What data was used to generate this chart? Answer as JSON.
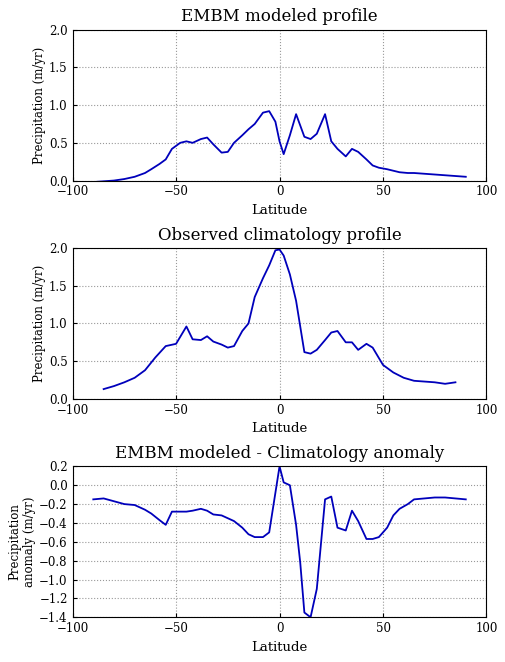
{
  "title1": "EMBM modeled profile",
  "title2": "Observed climatology profile",
  "title3": "EMBM modeled - Climatology anomaly",
  "xlabel": "Latitude",
  "ylabel1": "Precipitation (m/yr)",
  "ylabel2": "Precipitation (m/yr)",
  "ylabel3": "Precipitation\nanomaly (m/yr)",
  "xlim": [
    -100,
    100
  ],
  "ylim1": [
    0.0,
    2.0
  ],
  "ylim2": [
    0.0,
    2.0
  ],
  "ylim3": [
    -1.4,
    0.2
  ],
  "yticks1": [
    0.0,
    0.5,
    1.0,
    1.5,
    2.0
  ],
  "yticks2": [
    0.0,
    0.5,
    1.0,
    1.5,
    2.0
  ],
  "yticks3": [
    -1.4,
    -1.2,
    -1.0,
    -0.8,
    -0.6,
    -0.4,
    -0.2,
    0.0,
    0.2
  ],
  "xticks": [
    -100,
    -50,
    0,
    50,
    100
  ],
  "line_color": "#0000bb",
  "line_width": 1.3,
  "grid_color": "#999999",
  "lat1": [
    -90,
    -85,
    -80,
    -75,
    -70,
    -65,
    -62,
    -58,
    -55,
    -52,
    -48,
    -45,
    -42,
    -38,
    -35,
    -32,
    -28,
    -25,
    -22,
    -18,
    -15,
    -12,
    -8,
    -5,
    -2,
    0,
    2,
    5,
    8,
    12,
    15,
    18,
    22,
    25,
    28,
    32,
    35,
    38,
    42,
    45,
    48,
    52,
    55,
    58,
    62,
    65,
    70,
    75,
    80,
    85,
    90
  ],
  "precip1": [
    -0.02,
    -0.01,
    0.0,
    0.02,
    0.05,
    0.1,
    0.15,
    0.22,
    0.28,
    0.42,
    0.5,
    0.52,
    0.5,
    0.55,
    0.57,
    0.48,
    0.37,
    0.38,
    0.5,
    0.6,
    0.68,
    0.75,
    0.9,
    0.92,
    0.78,
    0.52,
    0.35,
    0.6,
    0.88,
    0.58,
    0.55,
    0.62,
    0.88,
    0.52,
    0.42,
    0.32,
    0.42,
    0.38,
    0.28,
    0.2,
    0.17,
    0.15,
    0.13,
    0.11,
    0.1,
    0.1,
    0.09,
    0.08,
    0.07,
    0.06,
    0.05
  ],
  "lat2": [
    -85,
    -80,
    -75,
    -70,
    -65,
    -60,
    -55,
    -50,
    -45,
    -42,
    -38,
    -35,
    -32,
    -28,
    -25,
    -22,
    -18,
    -15,
    -12,
    -8,
    -5,
    -2,
    0,
    2,
    5,
    8,
    12,
    15,
    18,
    22,
    25,
    28,
    32,
    35,
    38,
    42,
    45,
    50,
    55,
    60,
    65,
    70,
    75,
    80,
    85
  ],
  "precip2": [
    0.13,
    0.17,
    0.22,
    0.28,
    0.38,
    0.55,
    0.7,
    0.73,
    0.96,
    0.79,
    0.78,
    0.83,
    0.76,
    0.72,
    0.68,
    0.7,
    0.9,
    1.0,
    1.35,
    1.6,
    1.77,
    1.97,
    1.98,
    1.9,
    1.65,
    1.3,
    0.62,
    0.6,
    0.65,
    0.78,
    0.88,
    0.9,
    0.75,
    0.75,
    0.65,
    0.73,
    0.68,
    0.45,
    0.35,
    0.28,
    0.24,
    0.23,
    0.22,
    0.2,
    0.22
  ],
  "lat3": [
    -90,
    -85,
    -80,
    -75,
    -70,
    -65,
    -62,
    -58,
    -55,
    -52,
    -48,
    -45,
    -42,
    -38,
    -35,
    -32,
    -28,
    -25,
    -22,
    -18,
    -15,
    -12,
    -8,
    -5,
    -2,
    0,
    2,
    5,
    8,
    10,
    12,
    15,
    18,
    22,
    25,
    28,
    32,
    35,
    38,
    42,
    45,
    48,
    52,
    55,
    58,
    62,
    65,
    70,
    75,
    80,
    85,
    90
  ],
  "anom3": [
    -0.15,
    -0.14,
    -0.17,
    -0.2,
    -0.21,
    -0.26,
    -0.3,
    -0.37,
    -0.42,
    -0.28,
    -0.28,
    -0.28,
    -0.27,
    -0.25,
    -0.27,
    -0.31,
    -0.32,
    -0.35,
    -0.38,
    -0.45,
    -0.52,
    -0.55,
    -0.55,
    -0.5,
    -0.08,
    0.2,
    0.03,
    0.0,
    -0.42,
    -0.82,
    -1.35,
    -1.4,
    -1.1,
    -0.15,
    -0.12,
    -0.45,
    -0.48,
    -0.27,
    -0.38,
    -0.57,
    -0.57,
    -0.55,
    -0.45,
    -0.32,
    -0.25,
    -0.2,
    -0.15,
    -0.14,
    -0.13,
    -0.13,
    -0.14,
    -0.15
  ]
}
